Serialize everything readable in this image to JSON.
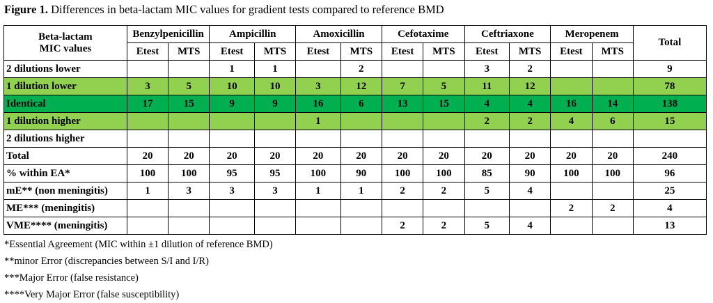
{
  "caption": {
    "label": "Figure 1.",
    "text": " Differences in beta-lactam MIC values for gradient tests compared to reference BMD"
  },
  "table": {
    "corner_label_line1": "Beta-lactam",
    "corner_label_line2": "MIC values",
    "drugs": [
      "Benzylpenicillin",
      "Ampicillin",
      "Amoxicillin",
      "Cefotaxime",
      "Ceftriaxone",
      "Meropenem"
    ],
    "subheaders": [
      "Etest",
      "MTS"
    ],
    "total_header": "Total",
    "rows": [
      {
        "label": "2 dilutions lower",
        "style": "plain",
        "cells": [
          "",
          "",
          "1",
          "1",
          "",
          "2",
          "",
          "",
          "3",
          "2",
          "",
          ""
        ],
        "total": "9"
      },
      {
        "label": "1 dilution lower",
        "style": "light",
        "cells": [
          "3",
          "5",
          "10",
          "10",
          "3",
          "12",
          "7",
          "5",
          "11",
          "12",
          "",
          ""
        ],
        "total": "78"
      },
      {
        "label": "Identical",
        "style": "dark",
        "cells": [
          "17",
          "15",
          "9",
          "9",
          "16",
          "6",
          "13",
          "15",
          "4",
          "4",
          "16",
          "14"
        ],
        "total": "138"
      },
      {
        "label": "1 dilution higher",
        "style": "light",
        "cells": [
          "",
          "",
          "",
          "",
          "1",
          "",
          "",
          "",
          "2",
          "2",
          "4",
          "6"
        ],
        "total": "15"
      },
      {
        "label": "2 dilutions higher",
        "style": "plain",
        "cells": [
          "",
          "",
          "",
          "",
          "",
          "",
          "",
          "",
          "",
          "",
          "",
          ""
        ],
        "total": ""
      },
      {
        "label": "Total",
        "style": "plain",
        "cells": [
          "20",
          "20",
          "20",
          "20",
          "20",
          "20",
          "20",
          "20",
          "20",
          "20",
          "20",
          "20"
        ],
        "total": "240"
      },
      {
        "label": "% within EA*",
        "style": "plain",
        "cells": [
          "100",
          "100",
          "95",
          "95",
          "100",
          "90",
          "100",
          "100",
          "85",
          "90",
          "100",
          "100"
        ],
        "total": "96"
      },
      {
        "label": "mE** (non meningitis)",
        "style": "plain",
        "cells": [
          "1",
          "3",
          "3",
          "3",
          "1",
          "1",
          "2",
          "2",
          "5",
          "4",
          "",
          ""
        ],
        "total": "25"
      },
      {
        "label": "ME*** (meningitis)",
        "style": "plain",
        "cells": [
          "",
          "",
          "",
          "",
          "",
          "",
          "",
          "",
          "",
          "",
          "2",
          "2"
        ],
        "total": "4"
      },
      {
        "label": "VME**** (meningitis)",
        "style": "plain",
        "cells": [
          "",
          "",
          "",
          "",
          "",
          "",
          "2",
          "2",
          "5",
          "4",
          "",
          ""
        ],
        "total": "13"
      }
    ]
  },
  "footnotes": [
    "*Essential Agreement (MIC within ±1 dilution of reference BMD)",
    "**minor Error (discrepancies between S/I and I/R)",
    "***Major Error (false resistance)",
    "****Very Major Error (false susceptibility)"
  ],
  "colors": {
    "light_green": "#92d050",
    "dark_green": "#00b050"
  }
}
